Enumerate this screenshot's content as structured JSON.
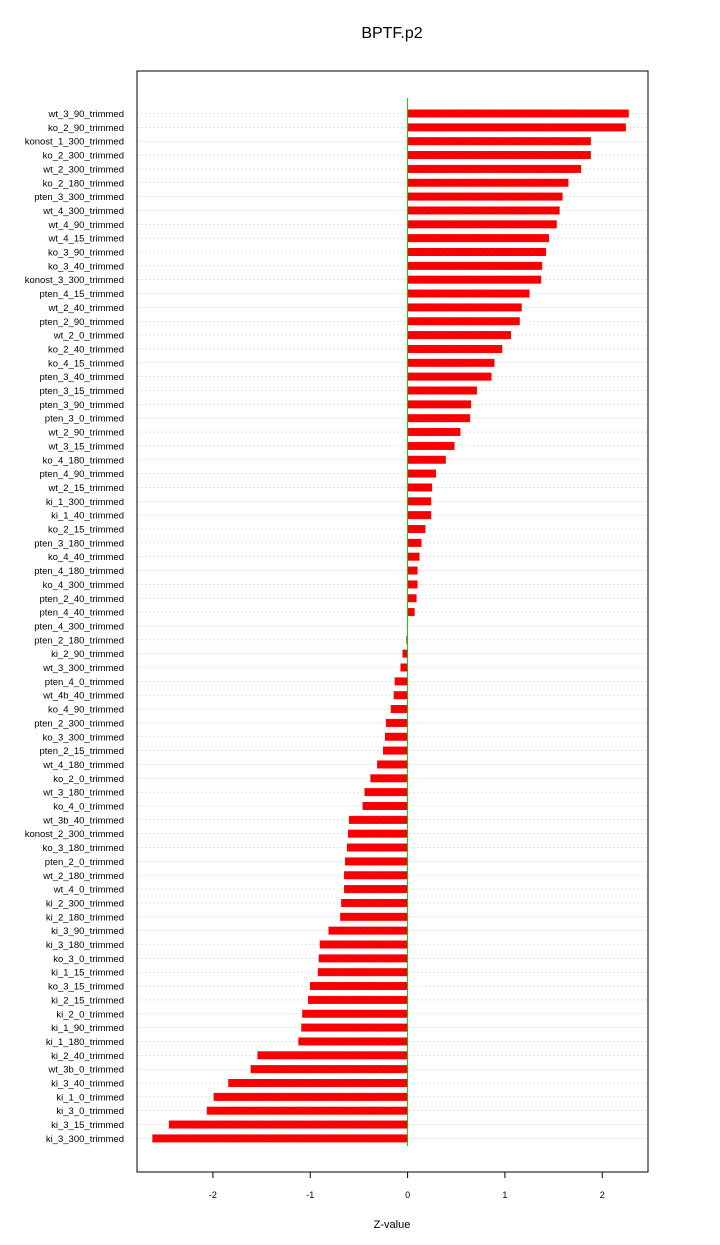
{
  "chart_data": {
    "type": "bar",
    "orientation": "horizontal",
    "title": "BPTF.p2",
    "xlabel": "Z-value",
    "ylabel": "",
    "xlim": [
      -2.78,
      2.47
    ],
    "xticks": [
      -2,
      -1,
      0,
      1,
      2
    ],
    "grid": true,
    "zero_line": true,
    "colors": {
      "bar": "#ff0000",
      "bar_hatch": "#b30000",
      "zero_line": "#00cc00",
      "grid": "#d0d0d0"
    },
    "categories": [
      "wt_3_90_trimmed",
      "ko_2_90_trimmed",
      "konost_1_300_trimmed",
      "ko_2_300_trimmed",
      "wt_2_300_trimmed",
      "ko_2_180_trimmed",
      "pten_3_300_trimmed",
      "wt_4_300_trimmed",
      "wt_4_90_trimmed",
      "wt_4_15_trimmed",
      "ko_3_90_trimmed",
      "ko_3_40_trimmed",
      "konost_3_300_trimmed",
      "pten_4_15_trimmed",
      "wt_2_40_trimmed",
      "pten_2_90_trimmed",
      "wt_2_0_trimmed",
      "ko_2_40_trimmed",
      "ko_4_15_trimmed",
      "pten_3_40_trimmed",
      "pten_3_15_trimmed",
      "pten_3_90_trimmed",
      "pten_3_0_trimmed",
      "wt_2_90_trimmed",
      "wt_3_15_trimmed",
      "ko_4_180_trimmed",
      "pten_4_90_trimmed",
      "wt_2_15_trimmed",
      "ki_1_300_trimmed",
      "ki_1_40_trimmed",
      "ko_2_15_trimmed",
      "pten_3_180_trimmed",
      "ko_4_40_trimmed",
      "pten_4_180_trimmed",
      "ko_4_300_trimmed",
      "pten_2_40_trimmed",
      "pten_4_40_trimmed",
      "pten_4_300_trimmed",
      "pten_2_180_trimmed",
      "ki_2_90_trimmed",
      "wt_3_300_trimmed",
      "pten_4_0_trimmed",
      "wt_4b_40_trimmed",
      "ko_4_90_trimmed",
      "pten_2_300_trimmed",
      "ko_3_300_trimmed",
      "pten_2_15_trimmed",
      "wt_4_180_trimmed",
      "ko_2_0_trimmed",
      "wt_3_180_trimmed",
      "ko_4_0_trimmed",
      "wt_3b_40_trimmed",
      "konost_2_300_trimmed",
      "ko_3_180_trimmed",
      "pten_2_0_trimmed",
      "wt_2_180_trimmed",
      "wt_4_0_trimmed",
      "ki_2_300_trimmed",
      "ki_2_180_trimmed",
      "ki_3_90_trimmed",
      "ki_3_180_trimmed",
      "ko_3_0_trimmed",
      "ki_1_15_trimmed",
      "ko_3_15_trimmed",
      "ki_2_15_trimmed",
      "ki_2_0_trimmed",
      "ki_1_90_trimmed",
      "ki_1_180_trimmed",
      "ki_2_40_trimmed",
      "wt_3b_0_trimmed",
      "ki_3_40_trimmed",
      "ki_1_0_trimmed",
      "ki_3_0_trimmed",
      "ki_3_15_trimmed",
      "ki_3_300_trimmed"
    ],
    "values": [
      2.27,
      2.24,
      1.88,
      1.88,
      1.78,
      1.65,
      1.59,
      1.56,
      1.53,
      1.45,
      1.42,
      1.38,
      1.37,
      1.25,
      1.17,
      1.15,
      1.06,
      0.97,
      0.89,
      0.86,
      0.71,
      0.65,
      0.64,
      0.54,
      0.48,
      0.39,
      0.29,
      0.25,
      0.24,
      0.24,
      0.18,
      0.14,
      0.12,
      0.1,
      0.1,
      0.09,
      0.07,
      0.0,
      -0.01,
      -0.05,
      -0.07,
      -0.13,
      -0.14,
      -0.17,
      -0.22,
      -0.23,
      -0.25,
      -0.31,
      -0.38,
      -0.44,
      -0.46,
      -0.6,
      -0.61,
      -0.62,
      -0.64,
      -0.65,
      -0.65,
      -0.68,
      -0.69,
      -0.81,
      -0.9,
      -0.91,
      -0.92,
      -1.0,
      -1.02,
      -1.08,
      -1.09,
      -1.12,
      -1.54,
      -1.61,
      -1.84,
      -1.99,
      -2.06,
      -2.45,
      -2.62
    ]
  }
}
